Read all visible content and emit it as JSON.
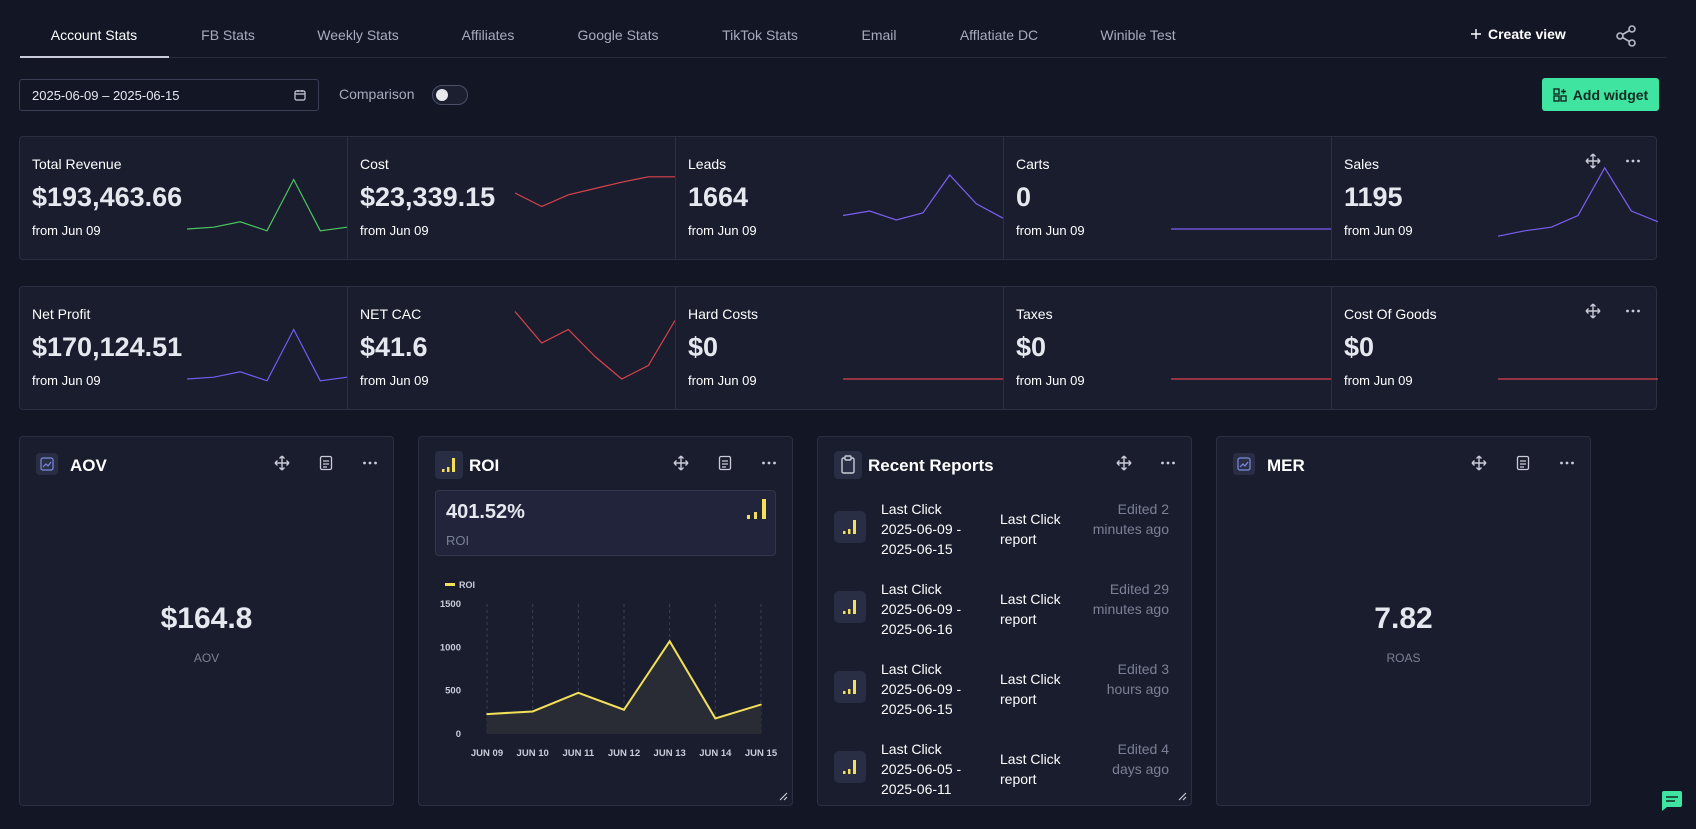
{
  "tabs": [
    "Account Stats",
    "FB Stats",
    "Weekly Stats",
    "Affiliates",
    "Google Stats",
    "TikTok Stats",
    "Email",
    "Afflatiate DC",
    "Winible Test"
  ],
  "active_tab": "Account Stats",
  "create_view_label": "Create view",
  "date_range": "2025-06-09 – 2025-06-15",
  "comparison_label": "Comparison",
  "comparison_on": false,
  "add_widget_label": "Add widget",
  "stats_row1": [
    {
      "label": "Total Revenue",
      "value": "$193,463.66",
      "sub": "from Jun 09",
      "color": "#4cc760",
      "trend": [
        20,
        22,
        28,
        18,
        75,
        18,
        22
      ]
    },
    {
      "label": "Cost",
      "value": "$23,339.15",
      "sub": "from Jun 09",
      "color": "#d9434d",
      "trend": [
        60,
        45,
        58,
        65,
        72,
        78,
        78
      ]
    },
    {
      "label": "Leads",
      "value": "1664",
      "sub": "from Jun 09",
      "color": "#7c5ff2",
      "trend": [
        35,
        40,
        30,
        38,
        80,
        48,
        32
      ]
    },
    {
      "label": "Carts",
      "value": "0",
      "sub": "from Jun 09",
      "color": "#7c5ff2",
      "trend": [
        20,
        20,
        20,
        20,
        20,
        20,
        20
      ]
    },
    {
      "label": "Sales",
      "value": "1195",
      "sub": "from Jun 09",
      "color": "#7c5ff2",
      "trend": [
        12,
        18,
        22,
        35,
        88,
        40,
        28
      ]
    }
  ],
  "stats_row2": [
    {
      "label": "Net Profit",
      "value": "$170,124.51",
      "sub": "from Jun 09",
      "color": "#6c5ff2",
      "trend": [
        20,
        22,
        28,
        18,
        75,
        18,
        22
      ]
    },
    {
      "label": "NET CAC",
      "value": "$41.6",
      "sub": "from Jun 09",
      "color": "#d9434d",
      "trend": [
        95,
        60,
        75,
        45,
        20,
        35,
        85
      ]
    },
    {
      "label": "Hard Costs",
      "value": "$0",
      "sub": "from Jun 09",
      "color": "#d9434d",
      "trend": [
        20,
        20,
        20,
        20,
        20,
        20,
        20
      ]
    },
    {
      "label": "Taxes",
      "value": "$0",
      "sub": "from Jun 09",
      "color": "#d9434d",
      "trend": [
        20,
        20,
        20,
        20,
        20,
        20,
        20
      ]
    },
    {
      "label": "Cost Of Goods",
      "value": "$0",
      "sub": "from Jun 09",
      "color": "#d9434d",
      "trend": [
        20,
        20,
        20,
        20,
        20,
        20,
        20
      ]
    }
  ],
  "aov": {
    "title": "AOV",
    "value": "$164.8",
    "caption": "AOV"
  },
  "roi": {
    "title": "ROI",
    "value": "401.52%",
    "caption": "ROI"
  },
  "mer": {
    "title": "MER",
    "value": "7.82",
    "caption": "ROAS"
  },
  "recent_reports": {
    "title": "Recent Reports",
    "items": [
      {
        "name": "Last Click 2025-06-09 - 2025-06-15",
        "type": "Last Click report",
        "edited": "Edited 2 minutes ago"
      },
      {
        "name": "Last Click 2025-06-09 - 2025-06-16",
        "type": "Last Click report",
        "edited": "Edited 29 minutes ago"
      },
      {
        "name": "Last Click 2025-06-09 - 2025-06-15",
        "type": "Last Click report",
        "edited": "Edited 3 hours ago"
      },
      {
        "name": "Last Click 2025-06-05 - 2025-06-11",
        "type": "Last Click report",
        "edited": "Edited 4 days ago"
      }
    ]
  },
  "chart_data": {
    "type": "line",
    "title": "",
    "x": [
      "JUN 09",
      "JUN 10",
      "JUN 11",
      "JUN 12",
      "JUN 13",
      "JUN 14",
      "JUN 15"
    ],
    "series": [
      {
        "name": "ROI",
        "values": [
          230,
          260,
          475,
          280,
          1070,
          180,
          340
        ],
        "color": "#f2df5a"
      }
    ],
    "ylim": [
      0,
      1500
    ],
    "yticks": [
      0,
      500,
      1000,
      1500
    ],
    "grid": "vertical-dashed",
    "legend": "top-left",
    "xlabel": "",
    "ylabel": ""
  }
}
